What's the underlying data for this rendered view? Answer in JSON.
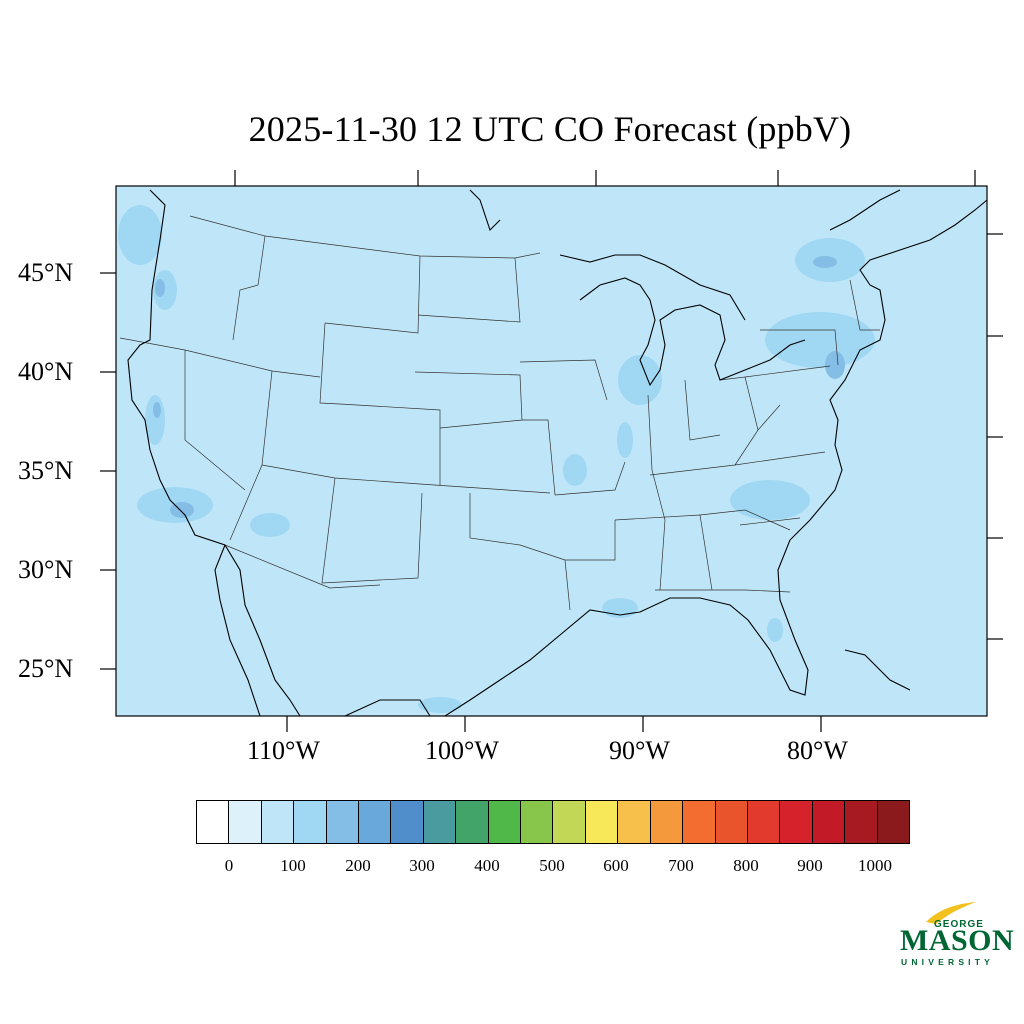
{
  "title": "2025-11-30 12 UTC CO Forecast (ppbV)",
  "latitude_labels": [
    "45°N",
    "40°N",
    "35°N",
    "30°N",
    "25°N"
  ],
  "longitude_labels": [
    "110°W",
    "100°W",
    "90°W",
    "80°W"
  ],
  "colorbar": {
    "colors": [
      "#ffffff",
      "#ddf1fb",
      "#bfe6f8",
      "#a0d8f3",
      "#84bde6",
      "#68a8da",
      "#4f8ecb",
      "#4a9ba0",
      "#43a46a",
      "#4fb848",
      "#88c64b",
      "#c3d757",
      "#f7e85a",
      "#f7c04a",
      "#f59a3c",
      "#f26d2f",
      "#ea542d",
      "#e23a2c",
      "#d6222b",
      "#c21b27",
      "#a81a22",
      "#8b1a1c"
    ],
    "labels": [
      "0",
      "100",
      "200",
      "300",
      "400",
      "500",
      "600",
      "700",
      "800",
      "900",
      "1000"
    ]
  },
  "map": {
    "background_color": "#bfe6f8",
    "plume_color": "#a0d8f3",
    "plume_dark_color": "#84bde6"
  },
  "logo": {
    "line1": "GEORGE",
    "line2": "MASON",
    "line3": "UNIVERSITY"
  }
}
